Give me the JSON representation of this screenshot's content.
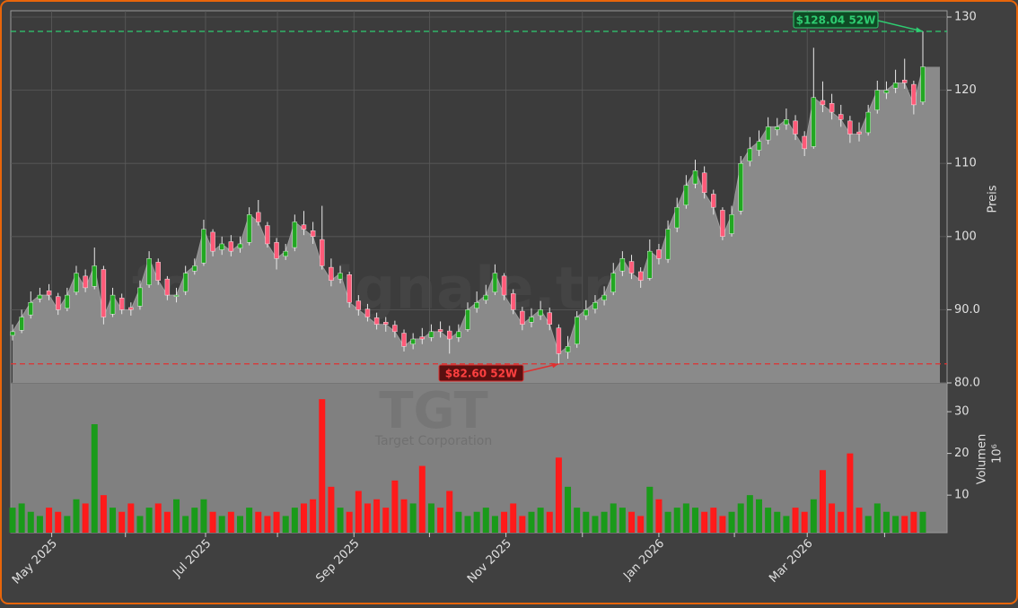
{
  "chart_data": {
    "type": "candlestick",
    "watermark": "forexsignale.trade",
    "symbol": "TGT",
    "company": "Target Corporation",
    "ylabel": "Preis",
    "y2label": "Volumen",
    "y2unit": "10⁶",
    "open": [
      86.5,
      87.2,
      89.3,
      91.5,
      92.6,
      91.8,
      90.2,
      92.4,
      94.6,
      93.2,
      95.5,
      89.4,
      91.6,
      90.3,
      90.5,
      93.4,
      96.5,
      94.2,
      91.8,
      92.5,
      95.3,
      96.4,
      100.6,
      98.2,
      99.3,
      98.4,
      99.2,
      103.3,
      101.5,
      99.2,
      97.3,
      98.5,
      101.6,
      100.8,
      99.6,
      95.8,
      94.2,
      94.8,
      91.2,
      90.1,
      88.9,
      88.3,
      87.9,
      86.8,
      85.3,
      86.3,
      86.2,
      87.3,
      87.1,
      86.2,
      87.3,
      90.2,
      91.3,
      92.4,
      94.6,
      92.2,
      89.8,
      88.3,
      89.2,
      89.6,
      87.5,
      84.2,
      85.3,
      89.2,
      90.1,
      91.3,
      92.4,
      95.3,
      96.6,
      95.2,
      94.3,
      98.2,
      96.9,
      101.2,
      104.3,
      107.2,
      108.7,
      105.8,
      103.6,
      100.4,
      103.5,
      110.3,
      111.8,
      113.2,
      114.6,
      115.3,
      115.8,
      113.7,
      112.3,
      118.6,
      118.2,
      116.7,
      115.8,
      114.3,
      114.2,
      117.3,
      119.6,
      120.3,
      121.4,
      120.8,
      118.4
    ],
    "high": [
      88,
      90,
      92.5,
      93,
      93.5,
      92.3,
      93,
      96,
      95.5,
      98.5,
      96,
      93,
      92.2,
      91,
      94,
      98,
      97,
      94.6,
      93,
      96,
      97,
      102.3,
      101,
      100,
      100.2,
      100,
      104,
      105,
      102,
      99.8,
      99,
      103,
      103.5,
      102,
      104.2,
      97,
      96,
      95.2,
      92,
      90.8,
      89.6,
      89,
      88.5,
      87.3,
      86.8,
      87.5,
      88,
      88.4,
      87.8,
      88,
      91,
      92.5,
      93.4,
      96.2,
      95,
      92.8,
      90.4,
      90.2,
      91.2,
      90.3,
      88,
      86.4,
      89.8,
      91.3,
      92,
      93.2,
      96.4,
      98,
      97.5,
      95.8,
      99.6,
      99,
      102.2,
      105.3,
      108.4,
      110.5,
      109.6,
      106.4,
      104,
      104.2,
      111,
      113.6,
      114.5,
      116.3,
      116.2,
      117.5,
      116.6,
      114.4,
      125.8,
      121.2,
      119.5,
      118,
      116.5,
      115.6,
      118,
      121.3,
      121.2,
      122.8,
      124.3,
      121.3,
      128.04
    ],
    "low": [
      85.8,
      86.8,
      88.8,
      91,
      91.3,
      89.3,
      89.8,
      92,
      92.4,
      92.8,
      88,
      89,
      89.4,
      89.2,
      90,
      93,
      93.4,
      91.3,
      91,
      92,
      94.8,
      96,
      97.3,
      97.5,
      97.3,
      97.8,
      98.8,
      101.5,
      98.5,
      95.5,
      96.8,
      98,
      100.2,
      99,
      95.5,
      93.2,
      93.6,
      90.3,
      89.2,
      88.4,
      87.3,
      87,
      86.2,
      84.3,
      84.6,
      85.3,
      85.7,
      86.2,
      84,
      85.6,
      87,
      89.6,
      90.8,
      92,
      91.3,
      89.4,
      87.2,
      87.6,
      88.6,
      87.2,
      82.6,
      83.3,
      84.8,
      88.6,
      89.5,
      90.6,
      92,
      94.6,
      94.2,
      93,
      94,
      96.2,
      96.4,
      100.6,
      103.8,
      106.6,
      105.2,
      103,
      99.5,
      100,
      103,
      109.6,
      111,
      112.6,
      113.8,
      114.6,
      113.2,
      111,
      112,
      117,
      116,
      115,
      112.8,
      113,
      113.8,
      116.8,
      118.8,
      119.6,
      120.2,
      116.7,
      118
    ],
    "close": [
      87,
      89,
      91,
      92,
      92,
      90,
      92,
      95,
      93,
      96,
      89,
      92,
      90,
      90,
      93,
      97,
      94,
      92,
      92,
      95,
      96,
      101,
      98,
      99,
      98,
      99,
      103,
      102,
      99,
      97,
      98,
      102,
      101,
      100,
      96,
      94,
      95,
      91,
      90,
      89,
      88,
      88,
      87,
      85,
      86,
      86,
      87,
      87,
      86,
      87,
      90,
      91,
      92,
      95,
      92,
      90,
      88,
      89,
      90,
      88,
      84,
      85,
      89,
      90,
      91,
      92,
      95,
      97,
      95,
      94,
      98,
      97,
      101,
      104,
      107,
      109,
      106,
      104,
      100,
      103,
      110,
      112,
      113,
      115,
      115,
      116,
      114,
      112,
      119,
      118,
      117,
      116,
      114,
      114,
      117,
      120,
      120,
      121,
      121,
      118,
      123.2
    ],
    "volume": [
      7,
      8,
      6,
      5,
      7,
      6,
      5,
      9,
      8,
      27,
      10,
      7,
      6,
      8,
      5,
      7,
      8,
      6,
      9,
      5,
      7,
      9,
      6,
      5,
      6,
      5,
      7,
      6,
      5,
      6,
      5,
      7,
      8,
      9,
      33,
      12,
      7,
      6,
      11,
      8,
      9,
      7,
      13.5,
      9,
      8,
      17,
      8,
      7,
      11,
      6,
      5,
      6,
      7,
      5,
      6,
      8,
      5,
      6,
      7,
      6,
      19,
      12,
      7,
      6,
      5,
      6,
      8,
      7,
      6,
      5,
      12,
      9,
      6,
      7,
      8,
      7,
      6,
      7,
      5,
      6,
      8,
      10,
      9,
      7,
      6,
      5,
      7,
      6,
      9,
      16,
      8,
      6,
      20,
      7,
      5,
      8,
      6,
      5,
      5,
      6,
      6
    ],
    "up_color": "#22a822",
    "down_color": "#ff5a78",
    "vol_up_color": "#1a9a1a",
    "vol_down_color": "#ff1a1a",
    "xlim": [
      0,
      100
    ],
    "xticks": [
      {
        "value": 4.3,
        "label": "May 2025"
      },
      {
        "value": 21.2,
        "label": "Jul 2025"
      },
      {
        "value": 37.5,
        "label": "Sep 2025"
      },
      {
        "value": 54.2,
        "label": "Nov 2025"
      },
      {
        "value": 71.0,
        "label": "Jan 2026"
      },
      {
        "value": 87.3,
        "label": "Mar 2026"
      }
    ],
    "xminorticks": [
      12.4,
      29.1,
      45.8,
      62.6,
      79.3,
      95.8
    ],
    "ylim": [
      80,
      130
    ],
    "yticks": [
      {
        "value": 80,
        "label": "80.0"
      },
      {
        "value": 90,
        "label": "90.0"
      },
      100,
      110,
      120,
      130
    ],
    "y2lim": [
      1,
      36.9
    ],
    "y2ticks": [
      10,
      20,
      30
    ],
    "grid": true,
    "annotations": [
      {
        "label": "$128.04 52W",
        "value": 128.04,
        "color": "#2ecc71"
      },
      {
        "label": "$82.60 52W",
        "value": 82.6,
        "color": "#e03030"
      }
    ]
  }
}
